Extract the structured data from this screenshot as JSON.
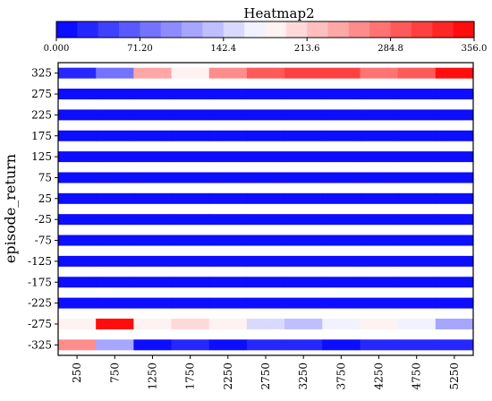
{
  "chart_data": {
    "type": "heatmap",
    "title": "Heatmap2",
    "xlabel": "",
    "ylabel": "episode_return",
    "x_tick_labels": [
      "250",
      "750",
      "1250",
      "1750",
      "2250",
      "2750",
      "3250",
      "3750",
      "4250",
      "4750",
      "5250"
    ],
    "y_tick_labels": [
      "325",
      "275",
      "225",
      "175",
      "125",
      "75",
      "25",
      "-25",
      "-75",
      "-125",
      "-175",
      "-225",
      "-275",
      "-325"
    ],
    "x_bin_count": 11,
    "colorbar": {
      "min": 0,
      "max": 356,
      "tick_labels": [
        "0.000",
        "71.20",
        "142.4",
        "213.6",
        "284.8",
        "356.0"
      ],
      "colormap": "bwr",
      "levels": 20
    },
    "values": [
      [
        20,
        75,
        245,
        190,
        255,
        285,
        310,
        305,
        270,
        290,
        340
      ],
      [
        0,
        0,
        0,
        0,
        0,
        0,
        0,
        0,
        0,
        0,
        0
      ],
      [
        0,
        0,
        0,
        0,
        0,
        0,
        0,
        0,
        0,
        0,
        0
      ],
      [
        0,
        0,
        0,
        0,
        0,
        0,
        0,
        0,
        0,
        0,
        0
      ],
      [
        0,
        0,
        0,
        0,
        0,
        0,
        0,
        0,
        0,
        0,
        0
      ],
      [
        0,
        0,
        0,
        0,
        0,
        0,
        0,
        0,
        0,
        0,
        0
      ],
      [
        0,
        0,
        0,
        0,
        0,
        0,
        0,
        0,
        0,
        0,
        0
      ],
      [
        0,
        0,
        0,
        12,
        0,
        0,
        0,
        0,
        0,
        0,
        0
      ],
      [
        0,
        0,
        0,
        0,
        0,
        0,
        0,
        0,
        0,
        0,
        0
      ],
      [
        0,
        0,
        0,
        0,
        0,
        0,
        0,
        0,
        0,
        0,
        0
      ],
      [
        0,
        0,
        0,
        0,
        0,
        0,
        0,
        0,
        0,
        0,
        0
      ],
      [
        0,
        0,
        0,
        0,
        0,
        0,
        0,
        0,
        0,
        0,
        0
      ],
      [
        190,
        350,
        185,
        200,
        190,
        160,
        140,
        165,
        180,
        165,
        110
      ],
      [
        255,
        115,
        10,
        25,
        15,
        20,
        25,
        15,
        20,
        20,
        20
      ]
    ]
  }
}
